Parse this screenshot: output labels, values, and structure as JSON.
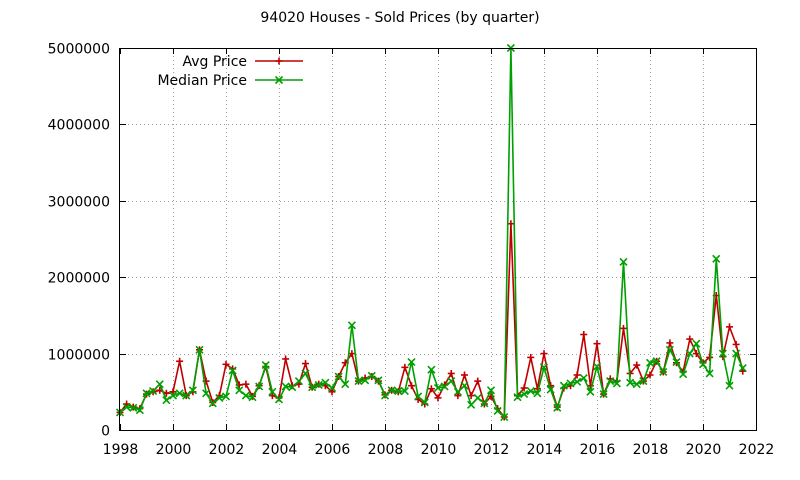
{
  "chart_data": {
    "type": "line",
    "title": "94020 Houses - Sold Prices (by quarter)",
    "xlabel": "",
    "ylabel": "",
    "xlim": [
      1998,
      2022
    ],
    "ylim": [
      0,
      5000000
    ],
    "x_ticks": [
      1998,
      2000,
      2002,
      2004,
      2006,
      2008,
      2010,
      2012,
      2014,
      2016,
      2018,
      2020,
      2022
    ],
    "y_ticks": [
      0,
      1000000,
      2000000,
      3000000,
      4000000,
      5000000
    ],
    "grid": true,
    "legend_position": "top-left",
    "x": [
      1998.0,
      1998.25,
      1998.5,
      1998.75,
      1999.0,
      1999.25,
      1999.5,
      1999.75,
      2000.0,
      2000.25,
      2000.5,
      2000.75,
      2001.0,
      2001.25,
      2001.5,
      2001.75,
      2002.0,
      2002.25,
      2002.5,
      2002.75,
      2003.0,
      2003.25,
      2003.5,
      2003.75,
      2004.0,
      2004.25,
      2004.5,
      2004.75,
      2005.0,
      2005.25,
      2005.5,
      2005.75,
      2006.0,
      2006.25,
      2006.5,
      2006.75,
      2007.0,
      2007.25,
      2007.5,
      2007.75,
      2008.0,
      2008.25,
      2008.5,
      2008.75,
      2009.0,
      2009.25,
      2009.5,
      2009.75,
      2010.0,
      2010.25,
      2010.5,
      2010.75,
      2011.0,
      2011.25,
      2011.5,
      2011.75,
      2012.0,
      2012.25,
      2012.5,
      2012.75,
      2013.0,
      2013.25,
      2013.5,
      2013.75,
      2014.0,
      2014.25,
      2014.5,
      2014.75,
      2015.0,
      2015.25,
      2015.5,
      2015.75,
      2016.0,
      2016.25,
      2016.5,
      2016.75,
      2017.0,
      2017.25,
      2017.5,
      2017.75,
      2018.0,
      2018.25,
      2018.5,
      2018.75,
      2019.0,
      2019.25,
      2019.5,
      2019.75,
      2020.0,
      2020.25,
      2020.5,
      2020.75,
      2021.0,
      2021.25,
      2021.5
    ],
    "series": [
      {
        "name": "Avg Price",
        "color": "#c00000",
        "marker": "plus",
        "values": [
          230000,
          340000,
          300000,
          280000,
          470000,
          500000,
          520000,
          480000,
          500000,
          900000,
          450000,
          500000,
          1050000,
          640000,
          360000,
          450000,
          860000,
          800000,
          590000,
          600000,
          440000,
          580000,
          830000,
          450000,
          420000,
          930000,
          580000,
          600000,
          870000,
          560000,
          600000,
          580000,
          500000,
          700000,
          880000,
          1000000,
          640000,
          680000,
          700000,
          640000,
          460000,
          520000,
          500000,
          820000,
          580000,
          400000,
          340000,
          540000,
          420000,
          590000,
          740000,
          450000,
          720000,
          450000,
          640000,
          340000,
          440000,
          280000,
          170000,
          2700000,
          450000,
          550000,
          950000,
          540000,
          1000000,
          580000,
          300000,
          550000,
          580000,
          720000,
          1250000,
          580000,
          1130000,
          470000,
          670000,
          640000,
          1330000,
          740000,
          850000,
          640000,
          720000,
          900000,
          760000,
          1140000,
          880000,
          760000,
          1190000,
          1000000,
          880000,
          950000,
          1760000,
          960000,
          1350000,
          1120000,
          770000
        ]
      },
      {
        "name": "Median Price",
        "color": "#00a000",
        "marker": "x",
        "values": [
          230000,
          300000,
          290000,
          260000,
          480000,
          510000,
          600000,
          390000,
          450000,
          480000,
          450000,
          520000,
          1050000,
          480000,
          350000,
          420000,
          440000,
          780000,
          520000,
          450000,
          430000,
          570000,
          850000,
          500000,
          400000,
          570000,
          560000,
          640000,
          740000,
          560000,
          590000,
          620000,
          550000,
          700000,
          600000,
          1370000,
          640000,
          650000,
          710000,
          650000,
          450000,
          520000,
          510000,
          510000,
          890000,
          440000,
          360000,
          790000,
          550000,
          570000,
          640000,
          500000,
          580000,
          330000,
          420000,
          350000,
          520000,
          250000,
          170000,
          5000000,
          430000,
          470000,
          510000,
          480000,
          820000,
          530000,
          290000,
          580000,
          610000,
          630000,
          680000,
          500000,
          830000,
          470000,
          640000,
          610000,
          2200000,
          620000,
          600000,
          640000,
          880000,
          900000,
          760000,
          1050000,
          890000,
          730000,
          1000000,
          1130000,
          860000,
          740000,
          2240000,
          1000000,
          580000,
          1000000,
          810000
        ]
      }
    ]
  }
}
